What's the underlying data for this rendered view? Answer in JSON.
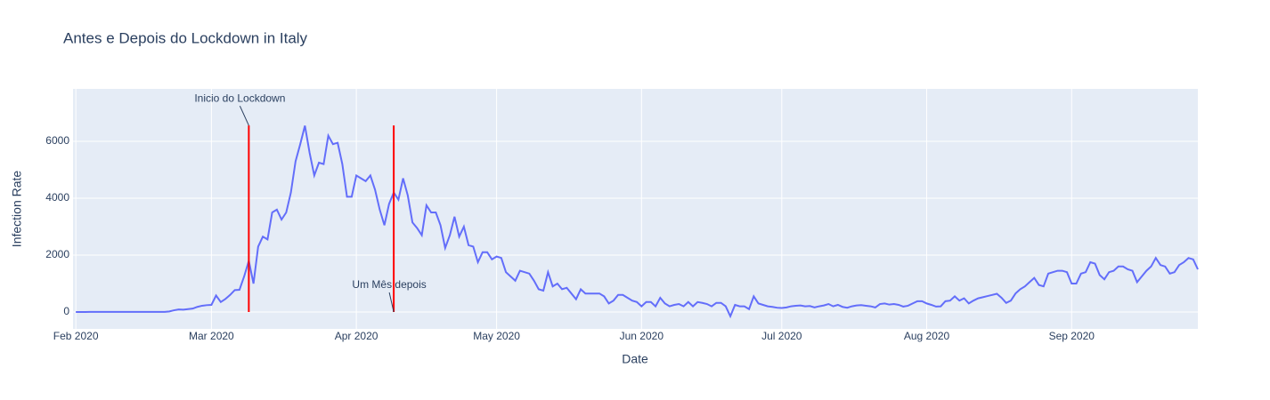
{
  "chart_data": {
    "type": "line",
    "title": "Antes e Depois do Lockdown in Italy",
    "x_label": "Date",
    "y_label": "Infection Rate",
    "color": "#636efa",
    "grid": true,
    "xlim": [
      -0.6,
      240
    ],
    "ylim": [
      -594,
      7844
    ],
    "xticks": [
      {
        "value": 0,
        "label": "Feb 2020"
      },
      {
        "value": 29,
        "label": "Mar 2020"
      },
      {
        "value": 60,
        "label": "Apr 2020"
      },
      {
        "value": 90,
        "label": "May 2020"
      },
      {
        "value": 121,
        "label": "Jun 2020"
      },
      {
        "value": 151,
        "label": "Jul 2020"
      },
      {
        "value": 182,
        "label": "Aug 2020"
      },
      {
        "value": 213,
        "label": "Sep 2020"
      }
    ],
    "yticks": [
      0,
      2000,
      4000,
      6000
    ],
    "x": [
      0,
      1,
      2,
      3,
      4,
      5,
      6,
      7,
      8,
      9,
      10,
      11,
      12,
      13,
      14,
      15,
      16,
      17,
      18,
      19,
      20,
      21,
      22,
      23,
      24,
      25,
      26,
      27,
      28,
      29,
      30,
      31,
      32,
      33,
      34,
      35,
      36,
      37,
      38,
      39,
      40,
      41,
      42,
      43,
      44,
      45,
      46,
      47,
      48,
      49,
      50,
      51,
      52,
      53,
      54,
      55,
      56,
      57,
      58,
      59,
      60,
      61,
      62,
      63,
      64,
      65,
      66,
      67,
      68,
      69,
      70,
      71,
      72,
      73,
      74,
      75,
      76,
      77,
      78,
      79,
      80,
      81,
      82,
      83,
      84,
      85,
      86,
      87,
      88,
      89,
      90,
      91,
      92,
      93,
      94,
      95,
      96,
      97,
      98,
      99,
      100,
      101,
      102,
      103,
      104,
      105,
      106,
      107,
      108,
      109,
      110,
      111,
      112,
      113,
      114,
      115,
      116,
      117,
      118,
      119,
      120,
      121,
      122,
      123,
      124,
      125,
      126,
      127,
      128,
      129,
      130,
      131,
      132,
      133,
      134,
      135,
      136,
      137,
      138,
      139,
      140,
      141,
      142,
      143,
      144,
      145,
      146,
      147,
      148,
      149,
      150,
      151,
      152,
      153,
      154,
      155,
      156,
      157,
      158,
      159,
      160,
      161,
      162,
      163,
      164,
      165,
      166,
      167,
      168,
      169,
      170,
      171,
      172,
      173,
      174,
      175,
      176,
      177,
      178,
      179,
      180,
      181,
      182,
      183,
      184,
      185,
      186,
      187,
      188,
      189,
      190,
      191,
      192,
      193,
      194,
      195,
      196,
      197,
      198,
      199,
      200,
      201,
      202,
      203,
      204,
      205,
      206,
      207,
      208,
      209,
      210,
      211,
      212,
      213,
      214,
      215,
      216,
      217,
      218,
      219,
      220,
      221,
      222,
      223,
      224,
      225,
      226,
      227,
      228,
      229,
      230,
      231,
      232,
      233,
      234,
      235,
      236,
      237,
      238,
      239,
      240
    ],
    "values": [
      0,
      0,
      0,
      2,
      2,
      3,
      3,
      3,
      3,
      3,
      3,
      3,
      3,
      3,
      3,
      3,
      3,
      3,
      3,
      3,
      20,
      60,
      90,
      80,
      100,
      120,
      180,
      220,
      240,
      250,
      580,
      350,
      460,
      600,
      770,
      780,
      1250,
      1800,
      1000,
      2300,
      2650,
      2550,
      3500,
      3600,
      3250,
      3500,
      4200,
      5300,
      5900,
      6550,
      5600,
      4800,
      5250,
      5200,
      6200,
      5900,
      5950,
      5200,
      4050,
      4050,
      4800,
      4700,
      4600,
      4800,
      4300,
      3600,
      3050,
      3800,
      4200,
      3950,
      4700,
      4100,
      3150,
      2950,
      2700,
      3750,
      3500,
      3500,
      3050,
      2250,
      2700,
      3350,
      2650,
      3000,
      2350,
      2300,
      1750,
      2100,
      2100,
      1850,
      1950,
      1900,
      1400,
      1250,
      1100,
      1450,
      1400,
      1350,
      1100,
      800,
      750,
      1400,
      900,
      1000,
      800,
      850,
      650,
      450,
      800,
      650,
      650,
      650,
      650,
      550,
      300,
      400,
      600,
      600,
      500,
      400,
      350,
      200,
      350,
      350,
      200,
      500,
      300,
      200,
      250,
      280,
      200,
      350,
      200,
      350,
      320,
      280,
      200,
      320,
      320,
      200,
      -150,
      250,
      200,
      200,
      100,
      550,
      300,
      250,
      200,
      180,
      150,
      140,
      160,
      200,
      220,
      230,
      200,
      210,
      160,
      200,
      230,
      280,
      200,
      250,
      180,
      150,
      200,
      230,
      240,
      220,
      200,
      160,
      280,
      300,
      260,
      280,
      250,
      190,
      220,
      300,
      380,
      380,
      300,
      250,
      190,
      200,
      380,
      400,
      550,
      400,
      480,
      300,
      400,
      480,
      520,
      560,
      600,
      640,
      500,
      320,
      400,
      650,
      800,
      900,
      1050,
      1200,
      950,
      900,
      1350,
      1400,
      1450,
      1450,
      1400,
      1000,
      1000,
      1350,
      1400,
      1750,
      1700,
      1300,
      1150,
      1400,
      1450,
      1600,
      1600,
      1500,
      1450,
      1050,
      1250,
      1450,
      1600,
      1900,
      1650,
      1600,
      1350,
      1400,
      1650,
      1750,
      1900,
      1850,
      1500
    ],
    "shapes": [
      {
        "x": 37,
        "y0": 0,
        "y1": 6557,
        "color": "red"
      },
      {
        "x": 68,
        "y0": 0,
        "y1": 6557,
        "color": "red"
      }
    ],
    "annotations": [
      {
        "text": "Inicio do Lockdown",
        "x": 37,
        "y": 6557
      },
      {
        "text": "Um Mês depois",
        "x": 68,
        "y": 0
      }
    ]
  }
}
